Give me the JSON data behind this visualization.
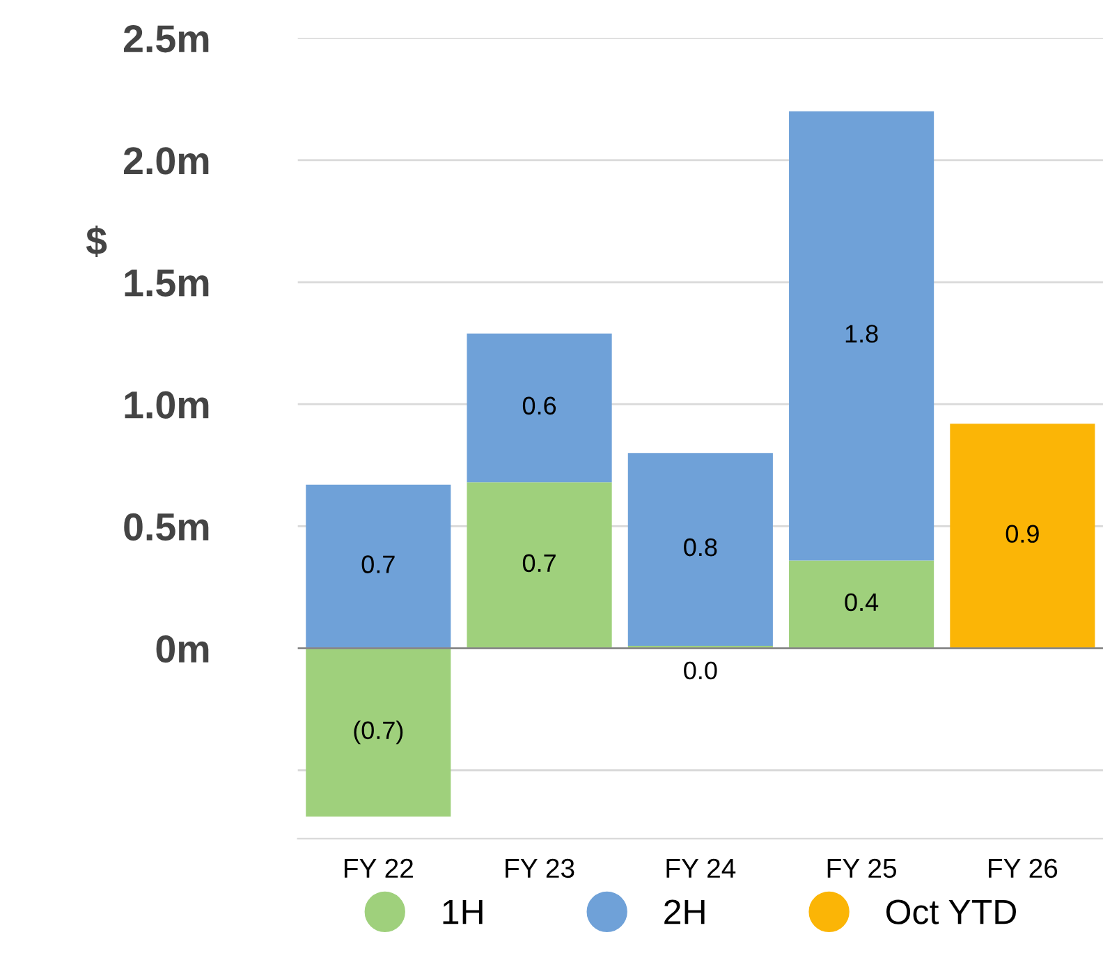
{
  "chart_data": {
    "type": "bar",
    "stacked": true,
    "ylabel": "$",
    "categories": [
      "FY 22",
      "FY 23",
      "FY 24",
      "FY 25",
      "FY 26"
    ],
    "series": [
      {
        "name": "1H",
        "color": "#9fd07c",
        "values": [
          -0.69,
          0.68,
          0.01,
          0.36,
          null
        ],
        "value_labels": [
          "(0.7)",
          "0.7",
          "0.0",
          "0.4",
          null
        ]
      },
      {
        "name": "2H",
        "color": "#6fa1d8",
        "values": [
          0.67,
          0.61,
          0.79,
          1.84,
          null
        ],
        "value_labels": [
          "0.7",
          "0.6",
          "0.8",
          "1.8",
          null
        ]
      },
      {
        "name": "Oct YTD",
        "color": "#fbb506",
        "values": [
          null,
          null,
          null,
          null,
          0.92
        ],
        "value_labels": [
          null,
          null,
          null,
          null,
          "0.9"
        ]
      }
    ],
    "ylim": [
      -0.78,
      2.5
    ],
    "yticks": [
      {
        "value": -0.5,
        "label": null
      },
      {
        "value": 0,
        "label": "0m"
      },
      {
        "value": 0.5,
        "label": "0.5m"
      },
      {
        "value": 1.0,
        "label": "1.0m"
      },
      {
        "value": 1.5,
        "label": "1.5m"
      },
      {
        "value": 2.0,
        "label": "2.0m"
      },
      {
        "value": 2.5,
        "label": "2.5m"
      }
    ],
    "grid": "y",
    "legend": "bottom"
  }
}
